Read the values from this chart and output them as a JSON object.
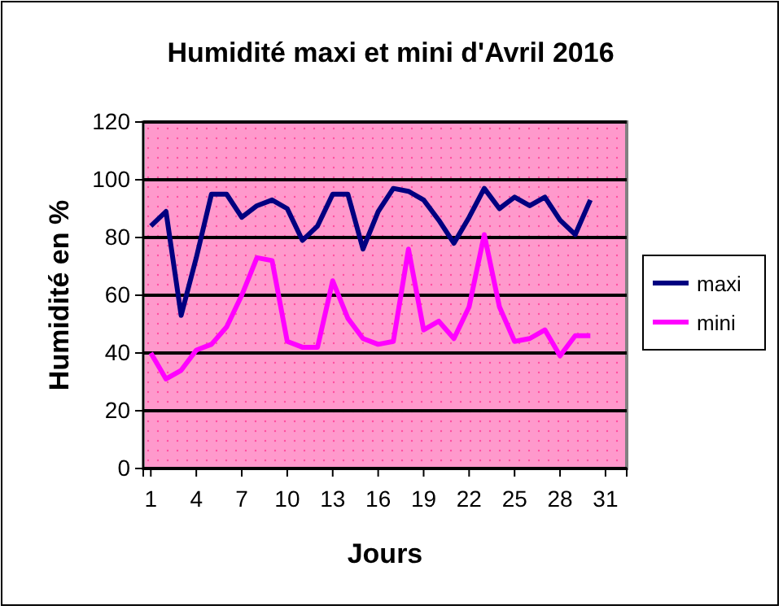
{
  "chart_data": {
    "type": "line",
    "title": "Humidité maxi et mini d'Avril 2016",
    "xlabel": "Jours",
    "ylabel": "Humidité en %",
    "x": [
      1,
      2,
      3,
      4,
      5,
      6,
      7,
      8,
      9,
      10,
      11,
      12,
      13,
      14,
      15,
      16,
      17,
      18,
      19,
      20,
      21,
      22,
      23,
      24,
      25,
      26,
      27,
      28,
      29,
      30
    ],
    "series": [
      {
        "name": "maxi",
        "color": "#000080",
        "values": [
          84,
          89,
          53,
          73,
          95,
          95,
          87,
          91,
          93,
          90,
          79,
          84,
          95,
          95,
          76,
          89,
          97,
          96,
          93,
          86,
          78,
          87,
          97,
          90,
          94,
          91,
          94,
          86,
          81,
          93
        ]
      },
      {
        "name": "mini",
        "color": "#ff00ff",
        "values": [
          40,
          31,
          34,
          41,
          43,
          49,
          60,
          73,
          72,
          44,
          42,
          42,
          65,
          52,
          45,
          43,
          44,
          76,
          48,
          51,
          45,
          56,
          81,
          56,
          44,
          45,
          48,
          39,
          46,
          46
        ]
      }
    ],
    "xlim": [
      0.5,
      32.4
    ],
    "xticks": [
      1,
      4,
      7,
      10,
      13,
      16,
      19,
      22,
      25,
      28,
      31
    ],
    "ylim": [
      0,
      120
    ],
    "yticks": [
      0,
      20,
      40,
      60,
      80,
      100,
      120
    ],
    "grid": "y",
    "legend": "right",
    "marker": "none",
    "line_style": "solid"
  }
}
